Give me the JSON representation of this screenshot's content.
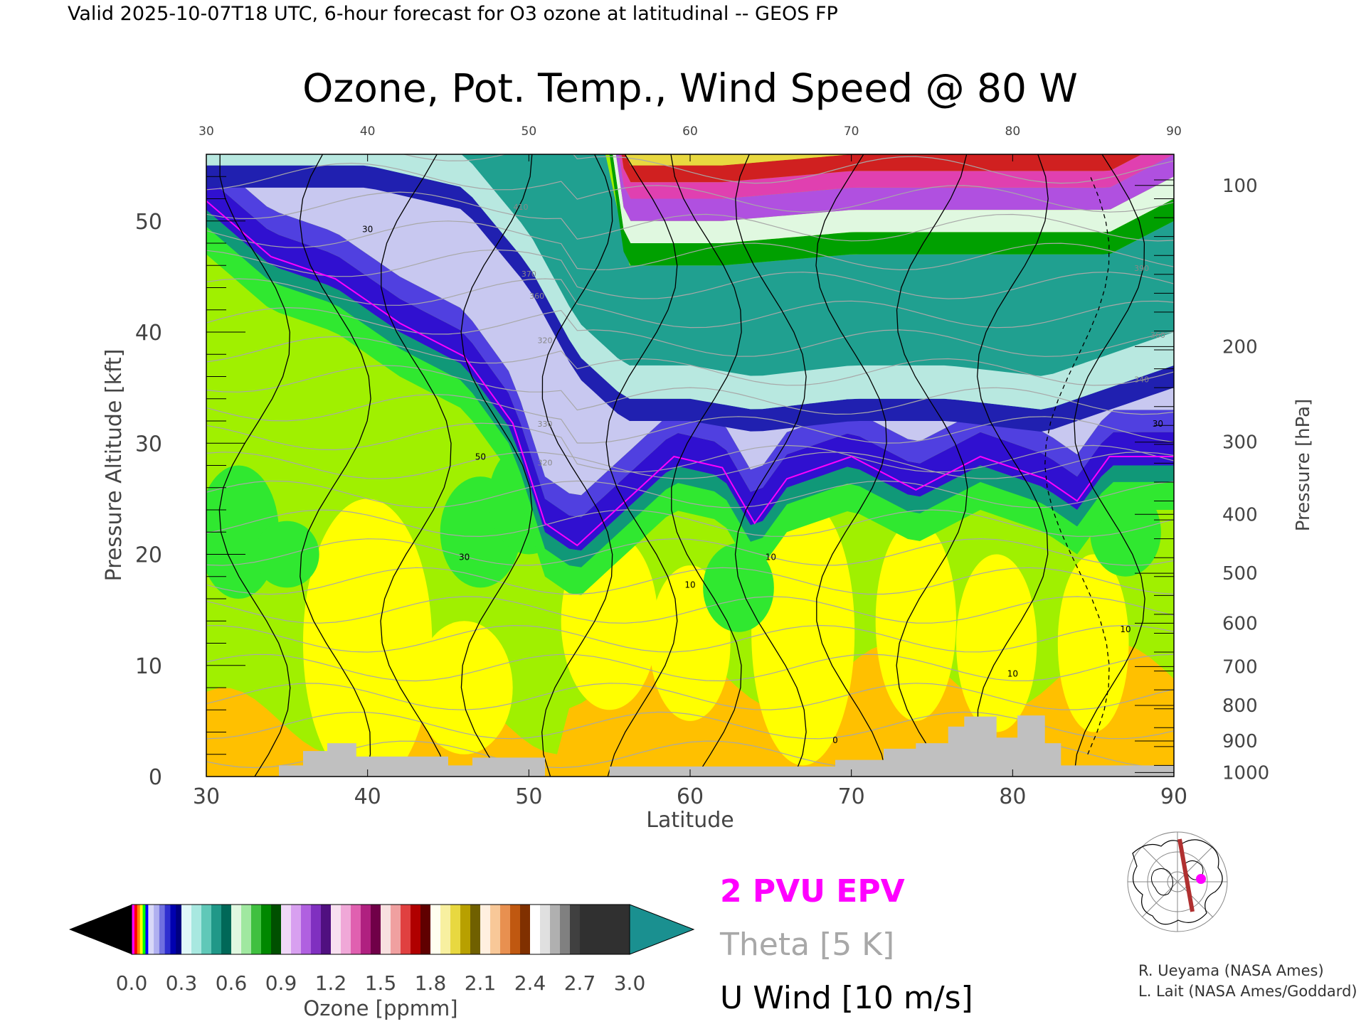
{
  "header": {
    "valid_line": "Valid 2025-10-07T18 UTC, 6-hour forecast for O3 ozone at latitudinal -- GEOS FP"
  },
  "chart_data": {
    "type": "heatmap",
    "title": "Ozone, Pot. Temp., Wind Speed @ 80 W",
    "xlabel": "Latitude",
    "ylabel_left": "Pressure Altitude [kft]",
    "ylabel_right": "Pressure [hPa]",
    "xlim": [
      30,
      90
    ],
    "ylim": [
      0,
      56
    ],
    "x_ticks": [
      "30",
      "40",
      "50",
      "60",
      "70",
      "80",
      "90"
    ],
    "x_tick_values": [
      30,
      40,
      50,
      60,
      70,
      80,
      90
    ],
    "y_ticks": [
      "0",
      "10",
      "20",
      "30",
      "40",
      "50"
    ],
    "y_tick_values": [
      0,
      10,
      20,
      30,
      40,
      50
    ],
    "pressure_ticks": [
      {
        "label": "100",
        "kft": 53.2
      },
      {
        "label": "200",
        "kft": 38.7
      },
      {
        "label": "300",
        "kft": 30.1
      },
      {
        "label": "400",
        "kft": 23.6
      },
      {
        "label": "500",
        "kft": 18.3
      },
      {
        "label": "600",
        "kft": 13.8
      },
      {
        "label": "700",
        "kft": 9.9
      },
      {
        "label": "800",
        "kft": 6.4
      },
      {
        "label": "900",
        "kft": 3.2
      },
      {
        "label": "1000",
        "kft": 0.36
      }
    ],
    "tropopause_kft": [
      {
        "lat": 30,
        "kft": 51
      },
      {
        "lat": 34,
        "kft": 46
      },
      {
        "lat": 38,
        "kft": 44
      },
      {
        "lat": 42,
        "kft": 40
      },
      {
        "lat": 46,
        "kft": 37
      },
      {
        "lat": 49,
        "kft": 31
      },
      {
        "lat": 51,
        "kft": 22
      },
      {
        "lat": 53,
        "kft": 20
      },
      {
        "lat": 56,
        "kft": 24
      },
      {
        "lat": 59,
        "kft": 28
      },
      {
        "lat": 62,
        "kft": 27
      },
      {
        "lat": 64,
        "kft": 22
      },
      {
        "lat": 66,
        "kft": 26
      },
      {
        "lat": 70,
        "kft": 28
      },
      {
        "lat": 74,
        "kft": 25
      },
      {
        "lat": 78,
        "kft": 28
      },
      {
        "lat": 82,
        "kft": 26
      },
      {
        "lat": 84,
        "kft": 24
      },
      {
        "lat": 86,
        "kft": 28
      },
      {
        "lat": 90,
        "kft": 28
      }
    ],
    "stratosphere_top_kft": [
      {
        "lat": 30,
        "kft": 55
      },
      {
        "lat": 40,
        "kft": 55
      },
      {
        "lat": 46,
        "kft": 53
      },
      {
        "lat": 50,
        "kft": 46
      },
      {
        "lat": 53,
        "kft": 38
      },
      {
        "lat": 56,
        "kft": 34
      },
      {
        "lat": 60,
        "kft": 34
      },
      {
        "lat": 64,
        "kft": 33
      },
      {
        "lat": 70,
        "kft": 34
      },
      {
        "lat": 76,
        "kft": 34
      },
      {
        "lat": 82,
        "kft": 33
      },
      {
        "lat": 86,
        "kft": 35
      },
      {
        "lat": 90,
        "kft": 37
      }
    ],
    "upper_layer_kft": [
      {
        "lat": 55,
        "kft": 56
      },
      {
        "lat": 56,
        "kft": 46
      },
      {
        "lat": 62,
        "kft": 46
      },
      {
        "lat": 70,
        "kft": 47
      },
      {
        "lat": 80,
        "kft": 47
      },
      {
        "lat": 86,
        "kft": 47
      },
      {
        "lat": 90,
        "kft": 50
      }
    ],
    "terrain_kft": [
      {
        "lat": 30,
        "kft": 0
      },
      {
        "lat": 34.5,
        "kft": 0
      },
      {
        "lat": 34.5,
        "kft": 1
      },
      {
        "lat": 36,
        "kft": 1
      },
      {
        "lat": 36,
        "kft": 2.3
      },
      {
        "lat": 37.5,
        "kft": 2.3
      },
      {
        "lat": 37.5,
        "kft": 3
      },
      {
        "lat": 39.3,
        "kft": 3
      },
      {
        "lat": 39.3,
        "kft": 1.8
      },
      {
        "lat": 45,
        "kft": 1.8
      },
      {
        "lat": 45,
        "kft": 1
      },
      {
        "lat": 46.5,
        "kft": 1
      },
      {
        "lat": 46.5,
        "kft": 1.7
      },
      {
        "lat": 51,
        "kft": 1.7
      },
      {
        "lat": 51,
        "kft": 0
      },
      {
        "lat": 55,
        "kft": 0
      },
      {
        "lat": 55,
        "kft": 0.9
      },
      {
        "lat": 69,
        "kft": 0.9
      },
      {
        "lat": 69,
        "kft": 1.5
      },
      {
        "lat": 72,
        "kft": 1.5
      },
      {
        "lat": 72,
        "kft": 2.5
      },
      {
        "lat": 74,
        "kft": 2.5
      },
      {
        "lat": 74,
        "kft": 3
      },
      {
        "lat": 76,
        "kft": 3
      },
      {
        "lat": 76,
        "kft": 4.5
      },
      {
        "lat": 77,
        "kft": 4.5
      },
      {
        "lat": 77,
        "kft": 5.4
      },
      {
        "lat": 79,
        "kft": 5.4
      },
      {
        "lat": 79,
        "kft": 3.5
      },
      {
        "lat": 80.3,
        "kft": 3.5
      },
      {
        "lat": 80.3,
        "kft": 5.5
      },
      {
        "lat": 82,
        "kft": 5.5
      },
      {
        "lat": 82,
        "kft": 3
      },
      {
        "lat": 83,
        "kft": 3
      },
      {
        "lat": 83,
        "kft": 1
      },
      {
        "lat": 90,
        "kft": 1
      },
      {
        "lat": 90,
        "kft": 0
      }
    ],
    "wind_contour_labels": [
      {
        "text": "30",
        "lat": 40,
        "kft": 49
      },
      {
        "text": "50",
        "lat": 47,
        "kft": 28.5
      },
      {
        "text": "30",
        "lat": 46,
        "kft": 19.5
      },
      {
        "text": "10",
        "lat": 60,
        "kft": 17
      },
      {
        "text": "10",
        "lat": 65,
        "kft": 19.5
      },
      {
        "text": "0",
        "lat": 69,
        "kft": 3
      },
      {
        "text": "10",
        "lat": 80,
        "kft": 9
      },
      {
        "text": "10",
        "lat": 87,
        "kft": 13
      },
      {
        "text": "30",
        "lat": 89,
        "kft": 31.5
      }
    ],
    "theta_labels": [
      {
        "text": "410",
        "lat": 49.5,
        "kft": 51
      },
      {
        "text": "370",
        "lat": 50,
        "kft": 45
      },
      {
        "text": "360",
        "lat": 50.5,
        "kft": 43
      },
      {
        "text": "320",
        "lat": 51,
        "kft": 39
      },
      {
        "text": "330",
        "lat": 51,
        "kft": 31.5
      },
      {
        "text": "320",
        "lat": 51,
        "kft": 28
      },
      {
        "text": "390",
        "lat": 88,
        "kft": 45.5
      },
      {
        "text": "360",
        "lat": 89,
        "kft": 39.5
      },
      {
        "text": "340",
        "lat": 88,
        "kft": 35.5
      }
    ],
    "colorbar": {
      "ticks": [
        "0.0",
        "0.3",
        "0.6",
        "0.9",
        "1.2",
        "1.5",
        "1.8",
        "2.1",
        "2.4",
        "2.7",
        "3.0"
      ],
      "label": "Ozone [ppmm]",
      "min": 0.0,
      "max": 3.0,
      "under_color": "#000000",
      "over_color": "#1a9090",
      "segments": [
        {
          "from": 0.0,
          "to": 0.1,
          "colors": [
            "#ff00ff",
            "#ff0000",
            "#ff8000",
            "#ffff00",
            "#00ff00",
            "#0000ff"
          ]
        },
        {
          "from": 0.1,
          "to": 0.3,
          "colors": [
            "#d8d8f8",
            "#b0b0f0",
            "#7070e0",
            "#3030d0",
            "#0000b0",
            "#000080"
          ]
        },
        {
          "from": 0.3,
          "to": 0.6,
          "colors": [
            "#e0f8f8",
            "#a8e8e0",
            "#60c8b8",
            "#209888",
            "#006858"
          ]
        },
        {
          "from": 0.6,
          "to": 0.9,
          "colors": [
            "#e0f8e0",
            "#a0e8a0",
            "#40c040",
            "#008800",
            "#005000"
          ]
        },
        {
          "from": 0.9,
          "to": 1.2,
          "colors": [
            "#f0d8f8",
            "#d8a0f0",
            "#b060e0",
            "#8030c0",
            "#501080"
          ]
        },
        {
          "from": 1.2,
          "to": 1.5,
          "colors": [
            "#f8e0f0",
            "#f0a8d8",
            "#e060b0",
            "#b02080",
            "#700048"
          ]
        },
        {
          "from": 1.5,
          "to": 1.8,
          "colors": [
            "#f8e0e0",
            "#f0a0a0",
            "#e04040",
            "#b00000",
            "#600000"
          ]
        },
        {
          "from": 1.8,
          "to": 2.1,
          "colors": [
            "#fffff0",
            "#f8f0a0",
            "#e8d840",
            "#b8a000",
            "#706000"
          ]
        },
        {
          "from": 2.1,
          "to": 2.4,
          "colors": [
            "#fff0e0",
            "#f8c898",
            "#e89050",
            "#c05810",
            "#803000"
          ]
        },
        {
          "from": 2.4,
          "to": 2.7,
          "colors": [
            "#ffffff",
            "#e0e0e0",
            "#b0b0b0",
            "#808080",
            "#404040"
          ]
        },
        {
          "from": 2.7,
          "to": 3.0,
          "colors": [
            "#303030",
            "#303030"
          ]
        }
      ]
    },
    "legend": [
      {
        "label": "2 PVU EPV",
        "color": "#ff00ff"
      },
      {
        "label": "Theta [5 K]",
        "color": "#a8a8a8"
      },
      {
        "label": "U Wind [10 m/s]",
        "color": "#000000"
      }
    ],
    "colors": {
      "troposphere_yellow": "#ffff00",
      "troposphere_orange": "#ffc000",
      "troposphere_lime": "#a0f000",
      "troposphere_green": "#30e830",
      "tropopause_blue": "#3010d0",
      "stratosphere_lavender": "#c8c8f0",
      "stratosphere_teal": "#20a090",
      "upper_green": "#00a000",
      "upper_purple": "#b050e0",
      "upper_magenta": "#e040b0",
      "upper_red": "#d02020",
      "terrain_gray": "#c0c0c0",
      "epv_magenta": "#ff00ff",
      "theta_gray": "#a8a8a8"
    }
  },
  "credits": {
    "line1": "R. Ueyama (NASA Ames)",
    "line2": "L. Lait (NASA Ames/Goddard)"
  },
  "inset_map": {
    "track_color": "#b03030",
    "dot_color": "#ff00ff"
  }
}
